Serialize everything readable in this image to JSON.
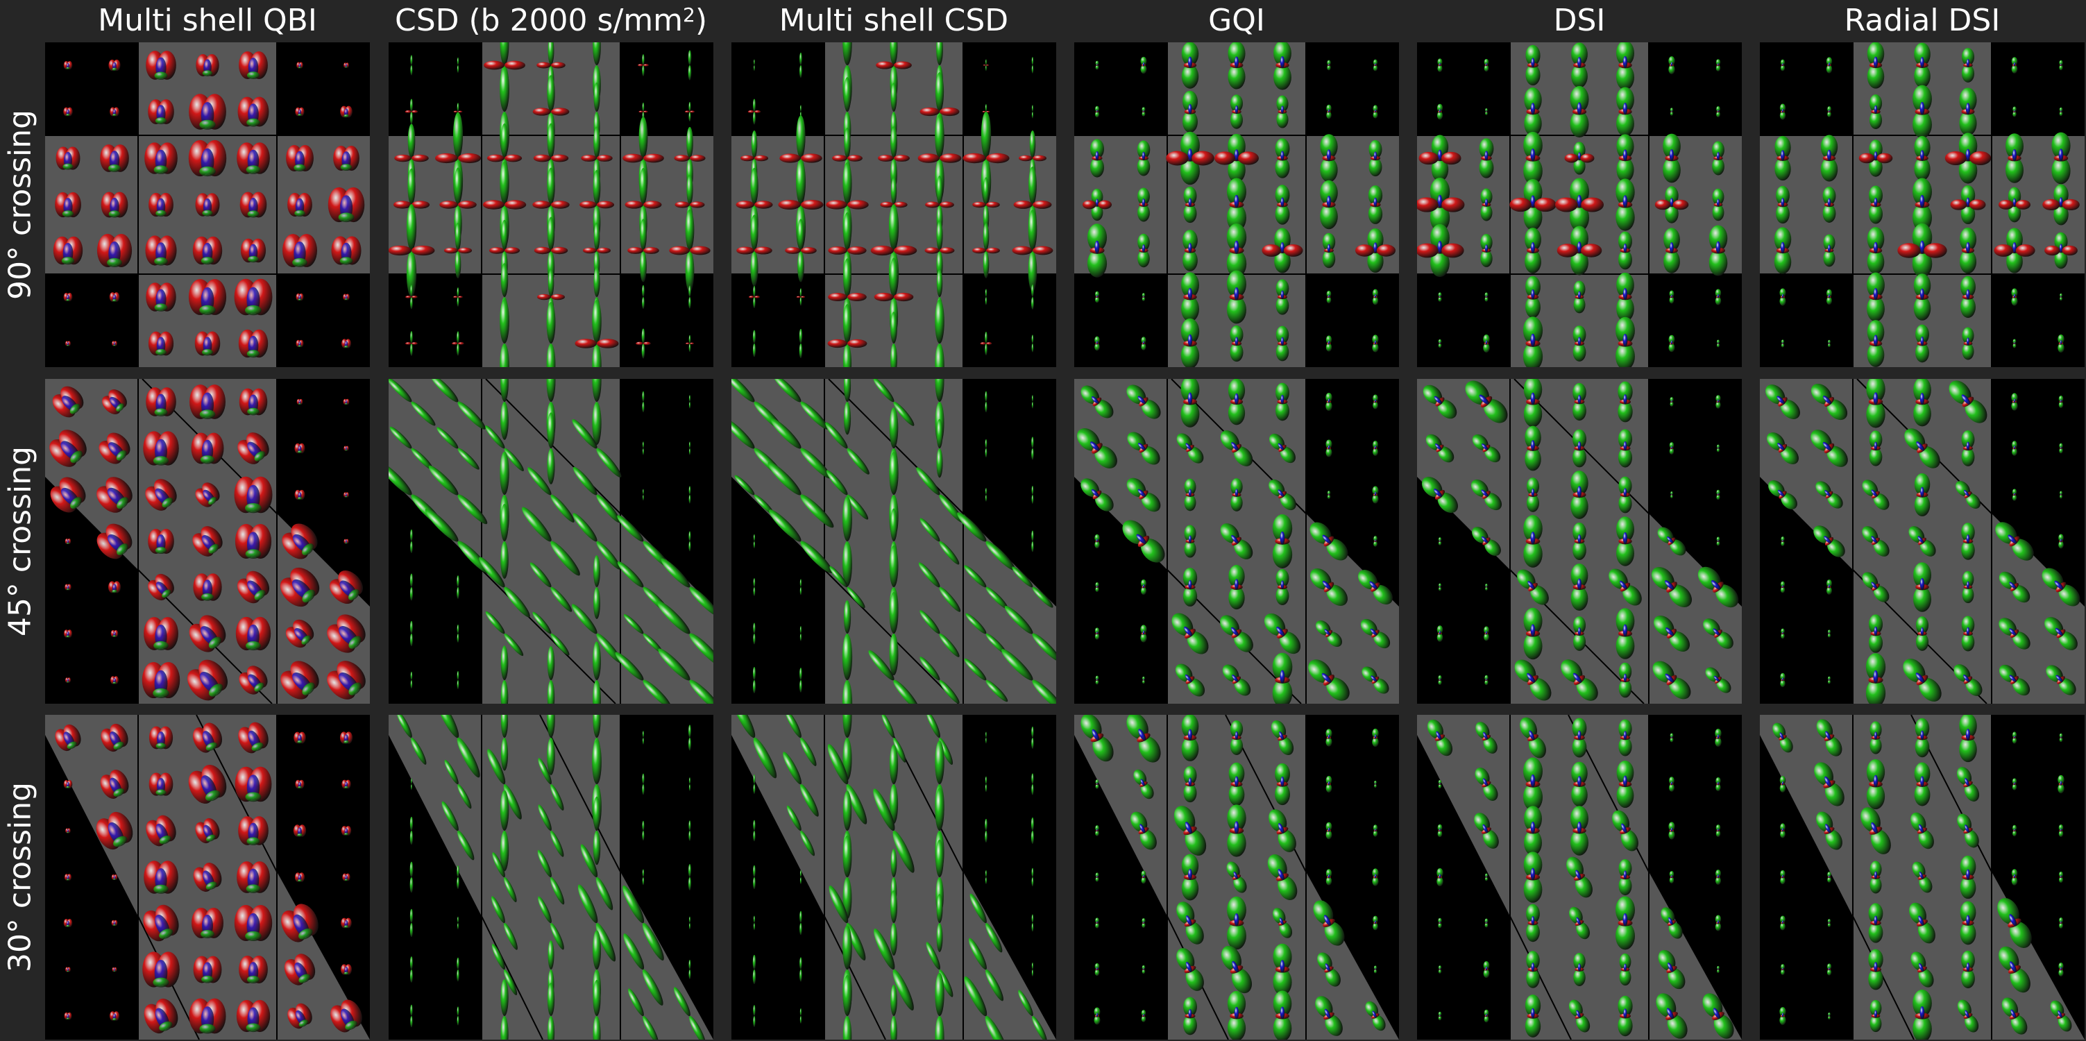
{
  "columns": [
    {
      "title": "Multi shell QBI",
      "style": "qbi"
    },
    {
      "title": "CSD (b 2000 s/mm",
      "sup": "2",
      "suffix": ")",
      "style": "csd"
    },
    {
      "title": "Multi shell CSD",
      "style": "csd"
    },
    {
      "title": "GQI",
      "style": "peanut"
    },
    {
      "title": "DSI",
      "style": "peanut"
    },
    {
      "title": "Radial DSI",
      "style": "peanut"
    }
  ],
  "rows": [
    {
      "label": "90° crossing",
      "angle": 90
    },
    {
      "label": "45° crossing",
      "angle": 45
    },
    {
      "label": "30° crossing",
      "angle": 30
    }
  ],
  "colors": {
    "figure_background": "#262626",
    "phantom_gray": "#575757",
    "phantom_black": "#000000",
    "glyph_red": "#d01818",
    "glyph_green": "#22c01c",
    "glyph_blue": "#1a1ad0"
  }
}
